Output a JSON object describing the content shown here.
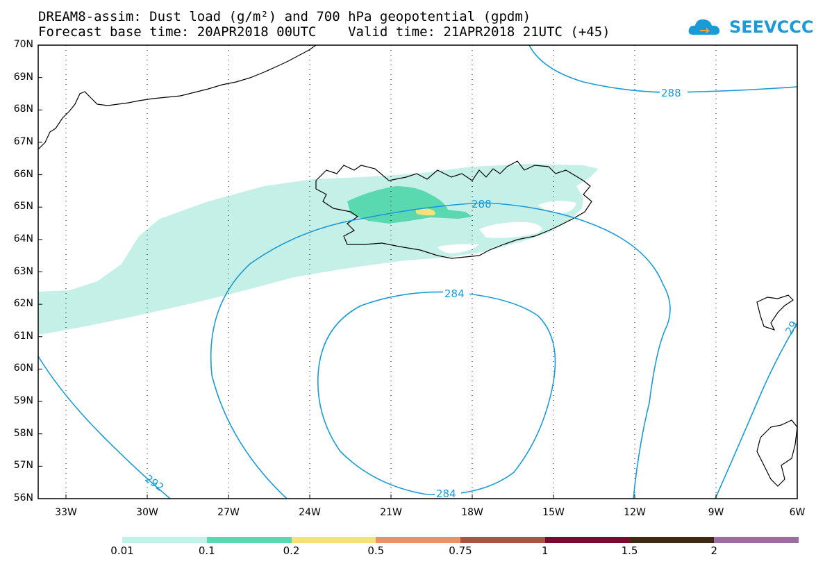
{
  "title_line1": "DREAM8-assim: Dust load (g/m²) and 700 hPa geopotential (gpdm)",
  "title_line2": "Forecast base time: 20APR2018 00UTC    Valid time: 21APR2018 21UTC (+45)",
  "logo_text": "SEEVCCC",
  "lat_labels": [
    "70N",
    "69N",
    "68N",
    "67N",
    "66N",
    "65N",
    "64N",
    "63N",
    "62N",
    "61N",
    "60N",
    "59N",
    "58N",
    "57N",
    "56N"
  ],
  "lon_labels": [
    "33W",
    "30W",
    "27W",
    "24W",
    "21W",
    "18W",
    "15W",
    "12W",
    "9W",
    "6W"
  ],
  "contour_labels": [
    "288",
    "288",
    "284",
    "284",
    "292",
    "29"
  ],
  "colorbar": {
    "labels": [
      "0.01",
      "0.1",
      "0.2",
      "0.5",
      "0.75",
      "1",
      "1.5",
      "2"
    ],
    "colors": [
      "#c5f0e8",
      "#5ad9b0",
      "#f3e27a",
      "#e8916a",
      "#a8534a",
      "#7b0a30",
      "#3e2a14",
      "#9a6fa0"
    ]
  },
  "colors": {
    "contour": "#1a9ad6",
    "dust_low": "#c5f0e8",
    "dust_mid": "#5ad9b0",
    "dust_high": "#f3e27a",
    "coast": "#000000",
    "grid": "#000000"
  }
}
